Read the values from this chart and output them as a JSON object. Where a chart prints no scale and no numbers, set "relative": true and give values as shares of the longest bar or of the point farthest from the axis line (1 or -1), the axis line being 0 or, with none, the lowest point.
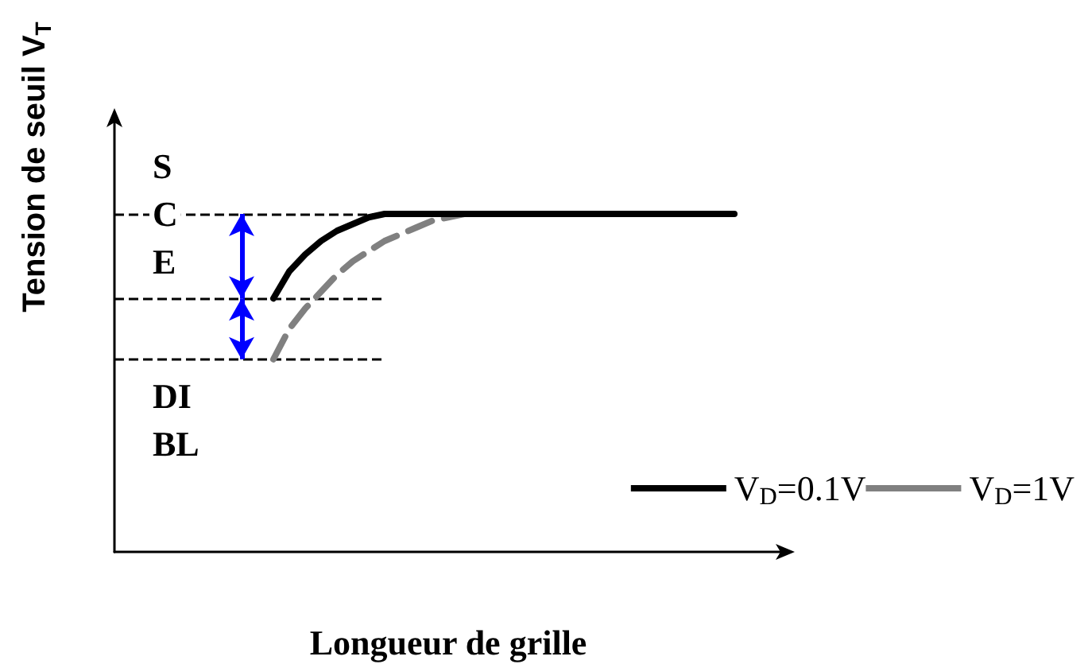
{
  "chart_data": {
    "type": "line",
    "relative": true,
    "xlabel": "Longueur de grille",
    "ylabel": "Tension de seuil V$_{T}$",
    "categories": [
      null,
      null,
      null,
      null,
      null,
      null,
      null,
      null,
      null,
      null,
      null,
      null,
      null,
      null,
      null,
      null,
      null,
      null,
      null,
      null,
      null,
      null,
      null,
      null,
      null,
      null,
      null,
      null,
      null,
      null,
      null,
      null,
      null,
      null,
      null,
      null,
      null,
      null,
      null,
      null,
      null,
      null,
      null
    ],
    "series": [
      {
        "name": "V$_{D}$=0.1V",
        "color": "#000000",
        "line_style": "solid",
        "values": [
          null,
          null,
          null,
          null,
          null,
          null,
          null,
          null,
          null,
          null,
          0.75,
          0.83,
          0.88,
          0.92,
          0.95,
          0.97,
          0.99,
          1,
          1,
          1,
          1,
          1,
          1,
          1,
          1,
          1,
          1,
          1,
          1,
          1,
          1,
          1,
          1,
          1,
          1,
          1,
          1,
          1,
          1,
          1,
          null,
          null,
          null
        ]
      },
      {
        "name": "V$_{D}$=1V",
        "color": "#808080",
        "line_style": "dashed",
        "values": [
          null,
          null,
          null,
          null,
          null,
          null,
          null,
          null,
          null,
          null,
          0.57,
          0.66,
          0.72,
          0.77,
          0.82,
          0.86,
          0.89,
          0.92,
          0.94,
          0.96,
          0.98,
          0.99,
          1,
          null,
          null,
          null,
          null,
          null,
          null,
          null,
          null,
          null,
          null,
          null,
          null,
          null,
          null,
          null,
          null,
          null,
          null,
          null,
          null
        ]
      }
    ],
    "ref_lines": [
      {
        "axis": "y",
        "value": 1,
        "color": "#000000",
        "line_style": "dashed"
      },
      {
        "axis": "y",
        "value": 0.75,
        "color": "#000000",
        "line_style": "dashed"
      },
      {
        "axis": "y",
        "value": 0.57,
        "color": "#000000",
        "line_style": "dashed"
      }
    ],
    "annotations": [
      "S\nC\nE",
      "DI\nBL"
    ],
    "legend": "bottom right",
    "grid": false,
    "marker": "none"
  }
}
